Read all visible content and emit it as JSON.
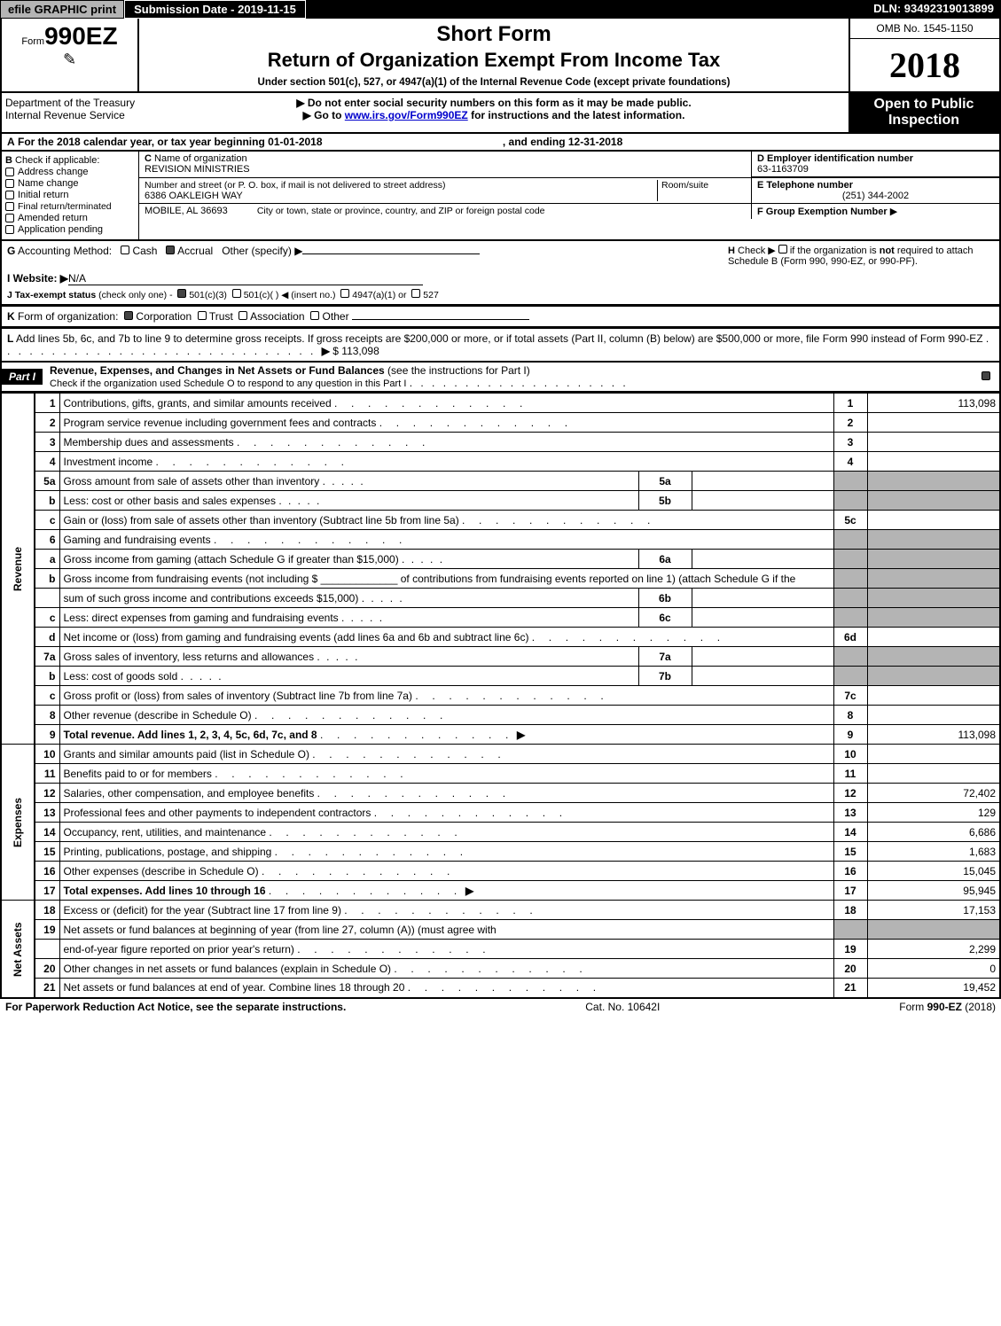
{
  "top_bar": {
    "print_btn": "efile GRAPHIC print",
    "submission": "Submission Date - 2019-11-15",
    "dln": "DLN: 93492319013899"
  },
  "header": {
    "form_prefix": "Form",
    "form_number": "990EZ",
    "short_form": "Short Form",
    "title": "Return of Organization Exempt From Income Tax",
    "subtitle": "Under section 501(c), 527, or 4947(a)(1) of the Internal Revenue Code (except private foundations)",
    "omb": "OMB No. 1545-1150",
    "year": "2018",
    "dept1": "Department of the Treasury",
    "dept2": "Internal Revenue Service",
    "instr1": "▶ Do not enter social security numbers on this form as it may be made public.",
    "instr2_pre": "▶ Go to ",
    "instr2_link": "www.irs.gov/Form990EZ",
    "instr2_post": " for instructions and the latest information.",
    "open": "Open to Public Inspection"
  },
  "lineA": {
    "label_a": "A",
    "text_pre": "For the 2018 calendar year, or tax year beginning ",
    "begin": "01-01-2018",
    "mid": ", and ending ",
    "end": "12-31-2018"
  },
  "blockB": {
    "label": "B",
    "heading": "Check if applicable:",
    "opts": [
      "Address change",
      "Name change",
      "Initial return",
      "Final return/terminated",
      "Amended return",
      "Application pending"
    ]
  },
  "blockC": {
    "label": "C",
    "name_label": "Name of organization",
    "name": "REVISION MINISTRIES",
    "street_label": "Number and street (or P. O. box, if mail is not delivered to street address)",
    "street": "6386 OAKLEIGH WAY",
    "room_label": "Room/suite",
    "city_line": "MOBILE, AL  36693",
    "city_label": "City or town, state or province, country, and ZIP or foreign postal code"
  },
  "blockD": {
    "label": "D Employer identification number",
    "value": "63-1163709"
  },
  "blockE": {
    "label": "E Telephone number",
    "value": "(251) 344-2002"
  },
  "blockF": {
    "label": "F Group Exemption Number",
    "arrow": "▶"
  },
  "lineG": {
    "label": "G",
    "text": "Accounting Method:",
    "opts": [
      "Cash",
      "Accrual"
    ],
    "other": "Other (specify) ▶"
  },
  "lineH": {
    "label": "H",
    "text1": "Check ▶",
    "text2": "if the organization is ",
    "not": "not",
    "text3": " required to attach Schedule B (Form 990, 990-EZ, or 990-PF)."
  },
  "lineI": {
    "label": "I Website: ▶",
    "value": "N/A"
  },
  "lineJ": {
    "label": "J Tax-exempt status",
    "sub": "(check only one) -",
    "opts": [
      "501(c)(3)",
      "501(c)(  ) ◀ (insert no.)",
      "4947(a)(1) or",
      "527"
    ]
  },
  "lineK": {
    "label": "K",
    "text": "Form of organization:",
    "opts": [
      "Corporation",
      "Trust",
      "Association",
      "Other"
    ]
  },
  "lineL": {
    "label": "L",
    "text": "Add lines 5b, 6c, and 7b to line 9 to determine gross receipts. If gross receipts are $200,000 or more, or if total assets (Part II, column (B) below) are $500,000 or more, file Form 990 instead of Form 990-EZ",
    "arrow": "▶",
    "value": "$ 113,098"
  },
  "part1": {
    "label": "Part I",
    "title": "Revenue, Expenses, and Changes in Net Assets or Fund Balances",
    "title_paren": "(see the instructions for Part I)",
    "check_text": "Check if the organization used Schedule O to respond to any question in this Part I"
  },
  "revenue_rows": [
    {
      "n": "1",
      "desc": "Contributions, gifts, grants, and similar amounts received",
      "line": "1",
      "amt": "113,098"
    },
    {
      "n": "2",
      "desc": "Program service revenue including government fees and contracts",
      "line": "2",
      "amt": ""
    },
    {
      "n": "3",
      "desc": "Membership dues and assessments",
      "line": "3",
      "amt": ""
    },
    {
      "n": "4",
      "desc": "Investment income",
      "line": "4",
      "amt": ""
    },
    {
      "n": "5a",
      "desc": "Gross amount from sale of assets other than inventory",
      "sub": "5a",
      "subval": ""
    },
    {
      "n": "b",
      "desc": "Less: cost or other basis and sales expenses",
      "sub": "5b",
      "subval": ""
    },
    {
      "n": "c",
      "desc": "Gain or (loss) from sale of assets other than inventory (Subtract line 5b from line 5a)",
      "line": "5c",
      "amt": ""
    },
    {
      "n": "6",
      "desc": "Gaming and fundraising events",
      "grey_right": true
    },
    {
      "n": "a",
      "desc": "Gross income from gaming (attach Schedule G if greater than $15,000)",
      "sub": "6a",
      "subval": "",
      "grey_right": true
    },
    {
      "n": "b",
      "desc": "Gross income from fundraising events (not including $ _____________ of contributions from fundraising events reported on line 1) (attach Schedule G if the",
      "nosub": true,
      "grey_right": true
    },
    {
      "n": "",
      "desc": "sum of such gross income and contributions exceeds $15,000)",
      "sub": "6b",
      "subval": "",
      "grey_right": true
    },
    {
      "n": "c",
      "desc": "Less: direct expenses from gaming and fundraising events",
      "sub": "6c",
      "subval": "",
      "grey_right": true
    },
    {
      "n": "d",
      "desc": "Net income or (loss) from gaming and fundraising events (add lines 6a and 6b and subtract line 6c)",
      "line": "6d",
      "amt": ""
    },
    {
      "n": "7a",
      "desc": "Gross sales of inventory, less returns and allowances",
      "sub": "7a",
      "subval": "",
      "grey_right": true
    },
    {
      "n": "b",
      "desc": "Less: cost of goods sold",
      "sub": "7b",
      "subval": "",
      "grey_right": true
    },
    {
      "n": "c",
      "desc": "Gross profit or (loss) from sales of inventory (Subtract line 7b from line 7a)",
      "line": "7c",
      "amt": ""
    },
    {
      "n": "8",
      "desc": "Other revenue (describe in Schedule O)",
      "line": "8",
      "amt": ""
    },
    {
      "n": "9",
      "desc": "Total revenue. Add lines 1, 2, 3, 4, 5c, 6d, 7c, and 8",
      "line": "9",
      "amt": "113,098",
      "bold": true,
      "arrow": true
    }
  ],
  "expense_rows": [
    {
      "n": "10",
      "desc": "Grants and similar amounts paid (list in Schedule O)",
      "line": "10",
      "amt": ""
    },
    {
      "n": "11",
      "desc": "Benefits paid to or for members",
      "line": "11",
      "amt": ""
    },
    {
      "n": "12",
      "desc": "Salaries, other compensation, and employee benefits",
      "line": "12",
      "amt": "72,402"
    },
    {
      "n": "13",
      "desc": "Professional fees and other payments to independent contractors",
      "line": "13",
      "amt": "129"
    },
    {
      "n": "14",
      "desc": "Occupancy, rent, utilities, and maintenance",
      "line": "14",
      "amt": "6,686"
    },
    {
      "n": "15",
      "desc": "Printing, publications, postage, and shipping",
      "line": "15",
      "amt": "1,683"
    },
    {
      "n": "16",
      "desc": "Other expenses (describe in Schedule O)",
      "line": "16",
      "amt": "15,045"
    },
    {
      "n": "17",
      "desc": "Total expenses. Add lines 10 through 16",
      "line": "17",
      "amt": "95,945",
      "bold": true,
      "arrow": true
    }
  ],
  "netassets_rows": [
    {
      "n": "18",
      "desc": "Excess or (deficit) for the year (Subtract line 17 from line 9)",
      "line": "18",
      "amt": "17,153"
    },
    {
      "n": "19",
      "desc": "Net assets or fund balances at beginning of year (from line 27, column (A)) (must agree with",
      "nosub": true,
      "grey_right": true
    },
    {
      "n": "",
      "desc": "end-of-year figure reported on prior year's return)",
      "line": "19",
      "amt": "2,299"
    },
    {
      "n": "20",
      "desc": "Other changes in net assets or fund balances (explain in Schedule O)",
      "line": "20",
      "amt": "0"
    },
    {
      "n": "21",
      "desc": "Net assets or fund balances at end of year. Combine lines 18 through 20",
      "line": "21",
      "amt": "19,452"
    }
  ],
  "vcat": {
    "rev": "Revenue",
    "exp": "Expenses",
    "net": "Net Assets"
  },
  "footer": {
    "left": "For Paperwork Reduction Act Notice, see the separate instructions.",
    "mid": "Cat. No. 10642I",
    "right": "Form 990-EZ (2018)"
  },
  "colors": {
    "black": "#000000",
    "white": "#ffffff",
    "grey": "#b4b4b4",
    "link": "#0000cc"
  }
}
